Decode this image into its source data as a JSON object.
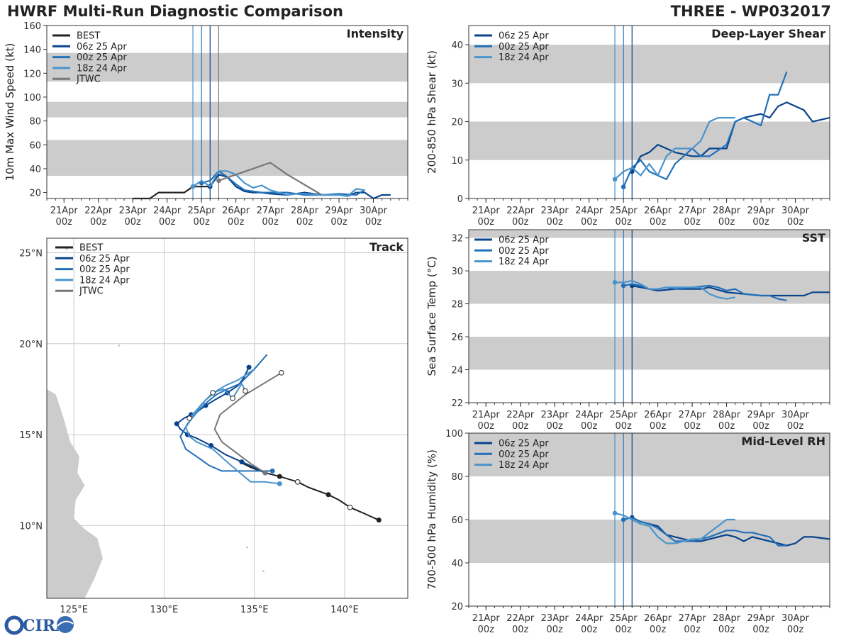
{
  "header": {
    "title": "HWRF Multi-Run Diagnostic Comparison",
    "storm": "THREE - WP032017"
  },
  "logo": {
    "text": "CIRA"
  },
  "colors": {
    "BEST": "#222222",
    "06z 25 Apr": "#08438c",
    "00z 25 Apr": "#2370b8",
    "18z 24 Apr": "#4a94cc",
    "JTWC": "#777777",
    "band": "#cccccc",
    "grid": "#cccccc",
    "land": "#cccccc"
  },
  "time_ticks": [
    {
      "day": 21,
      "line1": "21Apr",
      "line2": "00z"
    },
    {
      "day": 22,
      "line1": "22Apr",
      "line2": "00z"
    },
    {
      "day": 23,
      "line1": "23Apr",
      "line2": "00z"
    },
    {
      "day": 24,
      "line1": "24Apr",
      "line2": "00z"
    },
    {
      "day": 25,
      "line1": "25Apr",
      "line2": "00z"
    },
    {
      "day": 26,
      "line1": "26Apr",
      "line2": "00z"
    },
    {
      "day": 27,
      "line1": "27Apr",
      "line2": "00z"
    },
    {
      "day": 28,
      "line1": "28Apr",
      "line2": "00z"
    },
    {
      "day": 29,
      "line1": "29Apr",
      "line2": "00z"
    },
    {
      "day": 30,
      "line1": "30Apr",
      "line2": "00z"
    }
  ],
  "chart_data": [
    {
      "id": "intensity",
      "type": "line",
      "title": "Intensity",
      "ylabel": "10m Max Wind Speed (kt)",
      "xlim": [
        20.5,
        31.0
      ],
      "ylim": [
        15,
        160
      ],
      "yticks": [
        20,
        40,
        60,
        80,
        100,
        120,
        140,
        160
      ],
      "bands": [
        [
          34,
          64
        ],
        [
          83,
          96
        ],
        [
          113,
          137
        ]
      ],
      "init_lines": [
        {
          "x": 24.75,
          "series": "18z 24 Apr"
        },
        {
          "x": 25.0,
          "series": "00z 25 Apr"
        },
        {
          "x": 25.25,
          "series": "06z 25 Apr"
        },
        {
          "x": 25.5,
          "series": "JTWC"
        }
      ],
      "legend": [
        "BEST",
        "06z 25 Apr",
        "00z 25 Apr",
        "18z 24 Apr",
        "JTWC"
      ],
      "series": [
        {
          "name": "BEST",
          "x": [
            23.0,
            23.5,
            23.75,
            24.0,
            24.5,
            24.75,
            25.0,
            25.25
          ],
          "y": [
            15,
            15,
            20,
            20,
            20,
            25,
            25,
            25
          ],
          "marker": 25.25
        },
        {
          "name": "06z 25 Apr",
          "x": [
            25.25,
            25.5,
            25.75,
            26.0,
            26.25,
            26.5,
            26.75,
            27.0,
            27.5,
            28.0,
            28.5,
            29.0,
            29.25,
            29.5,
            29.75,
            30.0,
            30.25,
            30.5
          ],
          "y": [
            25,
            35,
            33,
            25,
            21,
            20,
            20,
            19,
            18,
            20,
            18,
            18,
            17,
            20,
            20,
            15,
            18,
            18
          ],
          "marker": 25.25
        },
        {
          "name": "00z 25 Apr",
          "x": [
            25.0,
            25.25,
            25.5,
            25.75,
            26.0,
            26.25,
            26.75,
            27.0,
            27.5,
            28.0,
            28.5,
            29.0,
            29.5,
            29.75
          ],
          "y": [
            28,
            30,
            38,
            33,
            27,
            22,
            20,
            20,
            20,
            18,
            18,
            19,
            18,
            22
          ],
          "marker": 25.0
        },
        {
          "name": "18z 24 Apr",
          "x": [
            24.75,
            25.0,
            25.25,
            25.5,
            25.75,
            26.0,
            26.25,
            26.5,
            26.75,
            27.0,
            27.25,
            27.5,
            27.75,
            28.0,
            28.5,
            29.0,
            29.25,
            29.5,
            29.75
          ],
          "y": [
            25,
            30,
            25,
            38,
            38,
            35,
            28,
            24,
            26,
            22,
            20,
            18,
            19,
            19,
            18,
            18,
            17,
            23,
            22
          ],
          "marker": 24.75
        },
        {
          "name": "JTWC",
          "x": [
            25.5,
            26.0,
            27.0,
            27.5,
            28.5
          ],
          "y": [
            30,
            35,
            45,
            35,
            18
          ],
          "marker": 25.5
        }
      ]
    },
    {
      "id": "shear",
      "type": "line",
      "title": "Deep-Layer Shear",
      "ylabel": "200-850 hPa Shear (kt)",
      "xlim": [
        20.5,
        31.0
      ],
      "ylim": [
        0,
        45
      ],
      "yticks": [
        0,
        10,
        20,
        30,
        40
      ],
      "bands": [
        [
          10,
          20
        ],
        [
          30,
          40
        ]
      ],
      "init_lines": [
        {
          "x": 24.75,
          "series": "18z 24 Apr"
        },
        {
          "x": 25.0,
          "series": "00z 25 Apr"
        },
        {
          "x": 25.25,
          "series": "06z 25 Apr"
        }
      ],
      "legend": [
        "06z 25 Apr",
        "00z 25 Apr",
        "18z 24 Apr"
      ],
      "series": [
        {
          "name": "06z 25 Apr",
          "x": [
            25.25,
            25.5,
            25.75,
            26.0,
            26.5,
            27.0,
            27.25,
            27.5,
            28.0,
            28.25,
            28.5,
            29.0,
            29.25,
            29.5,
            29.75,
            30.0,
            30.25,
            30.5,
            31.0
          ],
          "y": [
            7,
            11,
            12,
            14,
            12,
            11,
            11,
            13,
            13,
            20,
            21,
            22,
            21,
            24,
            25,
            24,
            23,
            20,
            21
          ],
          "marker": 25.25
        },
        {
          "name": "00z 25 Apr",
          "x": [
            25.0,
            25.25,
            25.5,
            25.75,
            26.0,
            26.25,
            26.5,
            27.0,
            27.25,
            27.5,
            28.0,
            28.25,
            28.5,
            29.0,
            29.25,
            29.5,
            29.75
          ],
          "y": [
            3,
            8,
            10,
            7,
            6,
            5,
            9,
            13,
            11,
            11,
            14,
            20,
            21,
            19,
            27,
            27,
            33
          ],
          "marker": 25.0
        },
        {
          "name": "18z 24 Apr",
          "x": [
            24.75,
            25.0,
            25.25,
            25.5,
            25.75,
            26.0,
            26.25,
            26.5,
            27.0,
            27.25,
            27.5,
            27.75,
            28.0,
            28.25
          ],
          "y": [
            5,
            7,
            8,
            6,
            9,
            6,
            11,
            13,
            13,
            15,
            20,
            21,
            21,
            21
          ],
          "marker": 24.75
        }
      ]
    },
    {
      "id": "sst",
      "type": "line",
      "title": "SST",
      "ylabel": "Sea Surface Temp (°C)",
      "xlim": [
        20.5,
        31.0
      ],
      "ylim": [
        22,
        32.5
      ],
      "yticks": [
        22,
        24,
        26,
        28,
        30,
        32
      ],
      "bands": [
        [
          24,
          26
        ],
        [
          28,
          30
        ],
        [
          32,
          33
        ]
      ],
      "init_lines": [
        {
          "x": 24.75,
          "series": "18z 24 Apr"
        },
        {
          "x": 25.0,
          "series": "00z 25 Apr"
        },
        {
          "x": 25.25,
          "series": "06z 25 Apr"
        }
      ],
      "legend": [
        "06z 25 Apr",
        "00z 25 Apr",
        "18z 24 Apr"
      ],
      "series": [
        {
          "name": "06z 25 Apr",
          "x": [
            25.25,
            25.5,
            25.75,
            26.0,
            26.5,
            27.0,
            27.25,
            27.5,
            28.0,
            28.5,
            29.0,
            29.5,
            30.0,
            30.25,
            30.5,
            31.0
          ],
          "y": [
            29.1,
            29.0,
            28.9,
            28.8,
            28.9,
            28.9,
            28.9,
            29.0,
            28.7,
            28.6,
            28.5,
            28.5,
            28.5,
            28.5,
            28.7,
            28.7
          ],
          "marker": 25.25
        },
        {
          "name": "00z 25 Apr",
          "x": [
            25.0,
            25.25,
            25.5,
            25.75,
            26.0,
            26.25,
            26.5,
            27.0,
            27.5,
            27.75,
            28.0,
            28.25,
            28.5,
            29.0,
            29.25,
            29.5,
            29.75
          ],
          "y": [
            29.1,
            29.2,
            29.1,
            28.9,
            28.9,
            29.0,
            28.9,
            29.0,
            29.1,
            29.0,
            28.8,
            28.9,
            28.6,
            28.5,
            28.5,
            28.3,
            28.2
          ],
          "marker": 25.0
        },
        {
          "name": "18z 24 Apr",
          "x": [
            24.75,
            25.0,
            25.25,
            25.5,
            25.75,
            26.0,
            26.25,
            26.5,
            27.0,
            27.25,
            27.5,
            27.75,
            28.0,
            28.25
          ],
          "y": [
            29.3,
            29.3,
            29.4,
            29.2,
            28.9,
            28.9,
            29.0,
            29.0,
            29.0,
            29.0,
            28.6,
            28.4,
            28.3,
            28.4
          ],
          "marker": 24.75
        }
      ]
    },
    {
      "id": "rh",
      "type": "line",
      "title": "Mid-Level RH",
      "ylabel": "700-500 hPa Humidity (%)",
      "xlim": [
        20.5,
        31.0
      ],
      "ylim": [
        20,
        100
      ],
      "yticks": [
        20,
        40,
        60,
        80,
        100
      ],
      "bands": [
        [
          40,
          60
        ],
        [
          80,
          100
        ]
      ],
      "init_lines": [
        {
          "x": 24.75,
          "series": "18z 24 Apr"
        },
        {
          "x": 25.0,
          "series": "00z 25 Apr"
        },
        {
          "x": 25.25,
          "series": "06z 25 Apr"
        }
      ],
      "legend": [
        "06z 25 Apr",
        "00z 25 Apr",
        "18z 24 Apr"
      ],
      "series": [
        {
          "name": "06z 25 Apr",
          "x": [
            25.25,
            25.5,
            25.75,
            26.0,
            26.25,
            26.5,
            27.0,
            27.25,
            27.5,
            28.0,
            28.25,
            28.5,
            28.75,
            29.0,
            29.5,
            29.75,
            30.0,
            30.25,
            30.5,
            31.0
          ],
          "y": [
            61,
            59,
            58,
            57,
            53,
            52,
            50,
            50,
            51,
            53,
            52,
            50,
            52,
            51,
            49,
            48,
            49,
            52,
            52,
            51
          ],
          "marker": 25.25
        },
        {
          "name": "00z 25 Apr",
          "x": [
            25.0,
            25.25,
            25.5,
            25.75,
            26.0,
            26.25,
            26.5,
            27.0,
            27.5,
            28.0,
            28.25,
            28.5,
            28.75,
            29.0,
            29.25,
            29.5,
            29.75
          ],
          "y": [
            60,
            61,
            59,
            58,
            56,
            53,
            50,
            50,
            52,
            55,
            55,
            54,
            54,
            53,
            52,
            48,
            48
          ],
          "marker": 25.0
        },
        {
          "name": "18z 24 Apr",
          "x": [
            24.75,
            25.0,
            25.25,
            25.5,
            25.75,
            26.0,
            26.25,
            26.5,
            27.0,
            27.25,
            27.5,
            27.75,
            28.0,
            28.25
          ],
          "y": [
            63,
            62,
            60,
            58,
            57,
            52,
            49,
            49,
            51,
            51,
            54,
            57,
            60,
            60
          ],
          "marker": 24.75
        }
      ]
    },
    {
      "id": "track",
      "type": "line",
      "title": "Track",
      "xlabel_ticks": [
        "125°E",
        "130°E",
        "135°E",
        "140°E"
      ],
      "ylabel_ticks": [
        "10°N",
        "15°N",
        "20°N",
        "25°N"
      ],
      "lon_ticks": [
        125,
        130,
        135,
        140
      ],
      "lat_ticks": [
        10,
        15,
        20,
        25
      ],
      "xlim": [
        123.5,
        143.5
      ],
      "ylim": [
        6.0,
        25.8
      ],
      "legend": [
        "BEST",
        "06z 25 Apr",
        "00z 25 Apr",
        "18z 24 Apr",
        "JTWC"
      ],
      "series": [
        {
          "name": "BEST",
          "lon": [
            141.9,
            141.0,
            140.3,
            139.7,
            139.1,
            138.0,
            137.4,
            136.4,
            135.6,
            134.8,
            134.2
          ],
          "lat": [
            10.3,
            10.7,
            11.0,
            11.4,
            11.7,
            12.1,
            12.4,
            12.7,
            12.9,
            13.2,
            13.5
          ],
          "open": [
            2,
            6
          ],
          "filled": [
            0,
            4,
            7
          ]
        },
        {
          "name": "06z 25 Apr",
          "lon": [
            135.6,
            135.0,
            134.3,
            133.4,
            132.6,
            131.8,
            131.3,
            130.9,
            130.7,
            131.1,
            131.5,
            131.9,
            132.3,
            132.8,
            133.5,
            134.1,
            134.4,
            134.7
          ],
          "lat": [
            12.9,
            13.2,
            13.5,
            13.9,
            14.4,
            14.8,
            15.0,
            15.3,
            15.6,
            15.9,
            16.1,
            16.3,
            16.6,
            16.9,
            17.3,
            17.7,
            18.1,
            18.7
          ],
          "filled": [
            0,
            2,
            4,
            6,
            8,
            10,
            12,
            14,
            17
          ]
        },
        {
          "name": "00z 25 Apr",
          "lon": [
            136.0,
            135.2,
            134.2,
            133.2,
            132.5,
            131.8,
            131.2,
            130.9,
            131.3,
            131.8,
            132.4,
            132.9,
            133.5,
            134.2,
            135.0,
            135.7
          ],
          "lat": [
            13.0,
            13.0,
            13.0,
            13.0,
            13.3,
            13.8,
            14.2,
            14.9,
            15.6,
            16.2,
            16.8,
            17.2,
            17.5,
            17.8,
            18.6,
            19.4
          ],
          "filled": [
            0
          ]
        },
        {
          "name": "18z 24 Apr",
          "lon": [
            136.4,
            135.6,
            134.8,
            134.2,
            133.6,
            132.7,
            131.8,
            131.4,
            131.2,
            131.6,
            132.3,
            132.9,
            133.4,
            134.1,
            135.0
          ],
          "lat": [
            12.3,
            12.4,
            12.4,
            12.9,
            13.4,
            14.2,
            14.6,
            14.9,
            15.4,
            16.0,
            16.9,
            17.4,
            17.7,
            18.0,
            18.6
          ],
          "filled": [
            0
          ]
        },
        {
          "name": "JTWC",
          "lon": [
            135.6,
            134.8,
            134.0,
            133.2,
            132.8,
            133.1,
            134.5,
            136.5
          ],
          "lat": [
            12.9,
            13.4,
            14.0,
            14.6,
            15.3,
            16.1,
            17.2,
            18.4
          ],
          "open": [
            7
          ],
          "filled": [
            0
          ]
        },
        {
          "name": "18z 24 Apr",
          "lon": [
            131.4,
            132.1,
            132.7,
            133.3,
            133.8,
            134.3,
            134.5
          ],
          "lat": [
            15.9,
            16.7,
            17.3,
            17.5,
            17.0,
            17.8,
            17.4
          ],
          "open": [
            0,
            2,
            4,
            6
          ]
        }
      ]
    }
  ]
}
